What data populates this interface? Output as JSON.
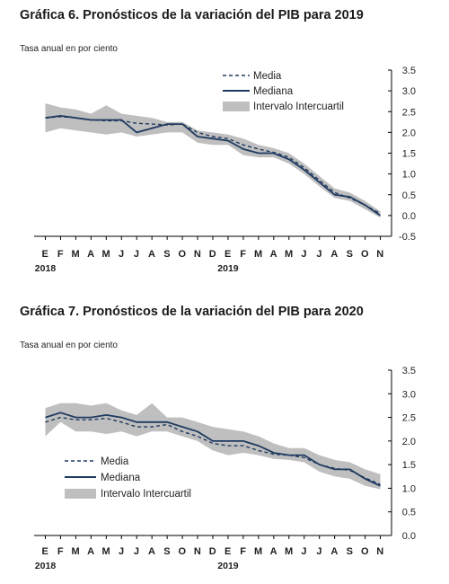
{
  "chart_data": [
    {
      "type": "line",
      "title": "Gráfica 6. Pronósticos de la variación del PIB para 2019",
      "subtitle": "Tasa anual en por ciento",
      "x_labels": [
        "E",
        "F",
        "M",
        "A",
        "M",
        "J",
        "J",
        "A",
        "S",
        "O",
        "N",
        "D",
        "E",
        "F",
        "M",
        "A",
        "M",
        "J",
        "J",
        "A",
        "S",
        "O",
        "N"
      ],
      "year_labels": [
        {
          "index": 0,
          "label": "2018"
        },
        {
          "index": 12,
          "label": "2019"
        }
      ],
      "ylim": [
        -0.5,
        3.5
      ],
      "y_ticks": [
        "3.5",
        "3.0",
        "2.5",
        "2.0",
        "1.5",
        "1.0",
        "0.5",
        "0.0",
        "-0.5"
      ],
      "legend_position": "top-right",
      "series": [
        {
          "name": "Media",
          "style": "dashed",
          "color": "#1f3a60",
          "values": [
            2.35,
            2.38,
            2.35,
            2.3,
            2.28,
            2.28,
            2.22,
            2.2,
            2.18,
            2.2,
            2.0,
            1.9,
            1.85,
            1.7,
            1.6,
            1.52,
            1.4,
            1.15,
            0.85,
            0.55,
            0.42,
            0.25,
            0.05
          ]
        },
        {
          "name": "Mediana",
          "style": "solid",
          "color": "#1f3a60",
          "values": [
            2.35,
            2.4,
            2.35,
            2.3,
            2.3,
            2.3,
            2.0,
            2.1,
            2.2,
            2.2,
            1.9,
            1.85,
            1.8,
            1.6,
            1.5,
            1.5,
            1.35,
            1.1,
            0.8,
            0.5,
            0.45,
            0.25,
            0.0
          ]
        },
        {
          "name": "Intervalo Intercuartil",
          "style": "band",
          "color": "#bfbfbf",
          "lower": [
            2.0,
            2.1,
            2.05,
            2.0,
            1.95,
            2.0,
            1.9,
            1.95,
            2.0,
            2.0,
            1.75,
            1.7,
            1.7,
            1.45,
            1.4,
            1.4,
            1.25,
            1.0,
            0.7,
            0.42,
            0.35,
            0.15,
            -0.05
          ],
          "upper": [
            2.7,
            2.6,
            2.55,
            2.45,
            2.65,
            2.45,
            2.4,
            2.35,
            2.25,
            2.25,
            2.05,
            2.0,
            1.95,
            1.85,
            1.7,
            1.62,
            1.5,
            1.25,
            0.95,
            0.65,
            0.55,
            0.35,
            0.1
          ]
        }
      ]
    },
    {
      "type": "line",
      "title": "Gráfica 7. Pronósticos de la variación del PIB para 2020",
      "subtitle": "Tasa anual en por ciento",
      "x_labels": [
        "E",
        "F",
        "M",
        "A",
        "M",
        "J",
        "J",
        "A",
        "S",
        "O",
        "N",
        "D",
        "E",
        "F",
        "M",
        "A",
        "M",
        "J",
        "J",
        "A",
        "S",
        "O",
        "N"
      ],
      "year_labels": [
        {
          "index": 0,
          "label": "2018"
        },
        {
          "index": 12,
          "label": "2019"
        }
      ],
      "ylim": [
        0.0,
        3.5
      ],
      "y_ticks": [
        "3.5",
        "3.0",
        "2.5",
        "2.0",
        "1.5",
        "1.0",
        "0.5",
        "0.0"
      ],
      "legend_position": "bottom-left",
      "series": [
        {
          "name": "Media",
          "style": "dashed",
          "color": "#1f3a60",
          "values": [
            2.4,
            2.5,
            2.45,
            2.45,
            2.48,
            2.4,
            2.3,
            2.3,
            2.35,
            2.2,
            2.1,
            1.95,
            1.9,
            1.9,
            1.8,
            1.72,
            1.7,
            1.65,
            1.5,
            1.42,
            1.38,
            1.22,
            1.08
          ]
        },
        {
          "name": "Mediana",
          "style": "solid",
          "color": "#1f3a60",
          "values": [
            2.5,
            2.6,
            2.5,
            2.5,
            2.55,
            2.5,
            2.4,
            2.4,
            2.4,
            2.3,
            2.2,
            2.0,
            2.0,
            2.0,
            1.9,
            1.75,
            1.7,
            1.7,
            1.5,
            1.4,
            1.4,
            1.2,
            1.05
          ]
        },
        {
          "name": "Intervalo Intercuartil",
          "style": "band",
          "color": "#bfbfbf",
          "lower": [
            2.1,
            2.4,
            2.2,
            2.2,
            2.15,
            2.2,
            2.1,
            2.2,
            2.2,
            2.1,
            2.0,
            1.8,
            1.7,
            1.75,
            1.7,
            1.62,
            1.6,
            1.55,
            1.35,
            1.25,
            1.2,
            1.05,
            0.98
          ],
          "upper": [
            2.7,
            2.8,
            2.8,
            2.75,
            2.8,
            2.65,
            2.55,
            2.8,
            2.5,
            2.5,
            2.4,
            2.3,
            2.25,
            2.2,
            2.1,
            1.95,
            1.85,
            1.85,
            1.7,
            1.6,
            1.55,
            1.4,
            1.3
          ]
        }
      ]
    }
  ]
}
